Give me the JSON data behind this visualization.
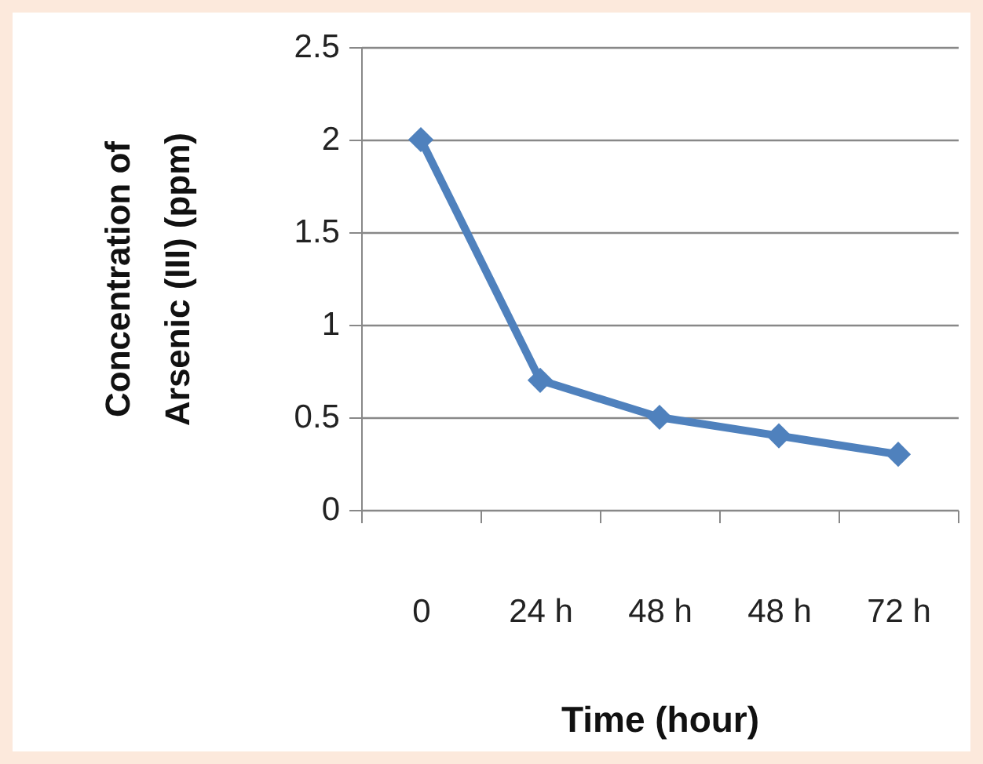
{
  "chart_data": {
    "type": "line",
    "xlabel": "Time (hour)",
    "ylabel": "Concentration of Arsenic (III) (ppm)",
    "categories": [
      "0",
      "24 h",
      "48 h",
      "48 h",
      "72 h"
    ],
    "series": [
      {
        "color": "#4f81bd",
        "values": [
          2,
          0.7,
          0.5,
          0.4,
          0.3
        ]
      }
    ],
    "ylim": [
      0,
      2.5
    ],
    "yticks": [
      0,
      0.5,
      1,
      1.5,
      2,
      2.5
    ],
    "grid": "y",
    "marker": "diamond",
    "line_style": "solid"
  }
}
